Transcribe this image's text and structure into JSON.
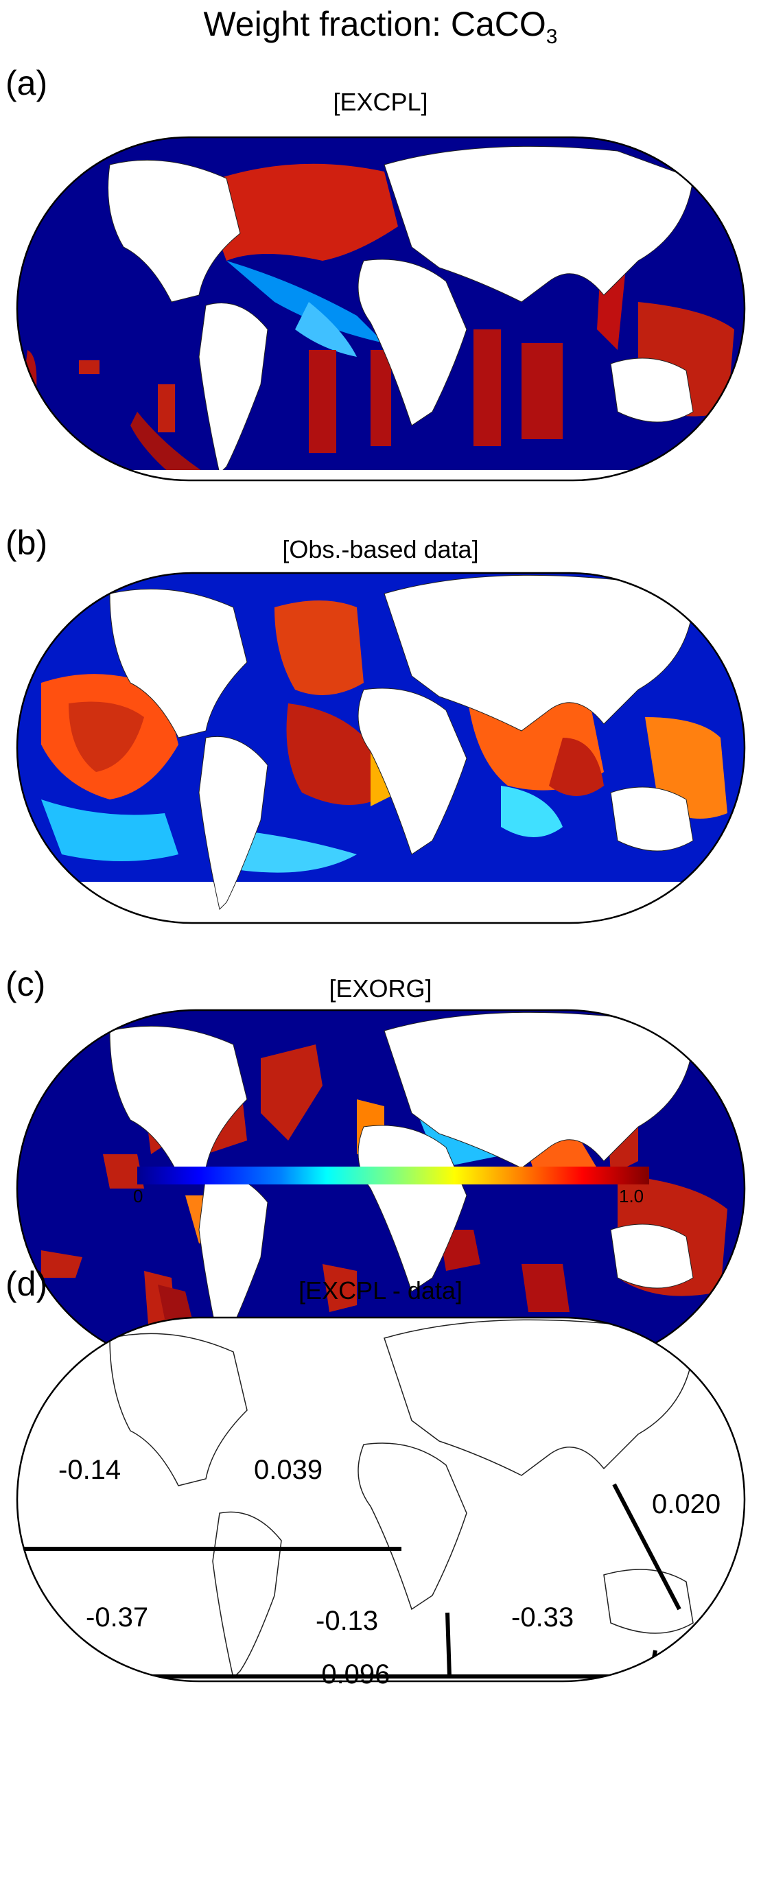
{
  "figure_title": "Weight fraction: CaCO",
  "figure_title_sub": "3",
  "panels": [
    {
      "label": "(a)",
      "title": "[EXCPL]"
    },
    {
      "label": "(b)",
      "title": "[Obs.-based data]"
    },
    {
      "label": "(c)",
      "title": "[EXORG]"
    },
    {
      "label": "(d)",
      "title": "[EXCPL - data]"
    }
  ],
  "colorbar": {
    "min_label": "0",
    "max_label": "1.0",
    "colormap": "jet"
  },
  "regions": [
    {
      "name_value": "-0.14"
    },
    {
      "name_value": "0.039"
    },
    {
      "name_value": "0.020"
    },
    {
      "name_value": "-0.37"
    },
    {
      "name_value": "-0.13"
    },
    {
      "name_value": "-0.33"
    },
    {
      "name_value": "-0.096"
    }
  ],
  "colors": {
    "ocean_low": "#00008f",
    "land": "#ffffff",
    "high": "#b01010"
  }
}
